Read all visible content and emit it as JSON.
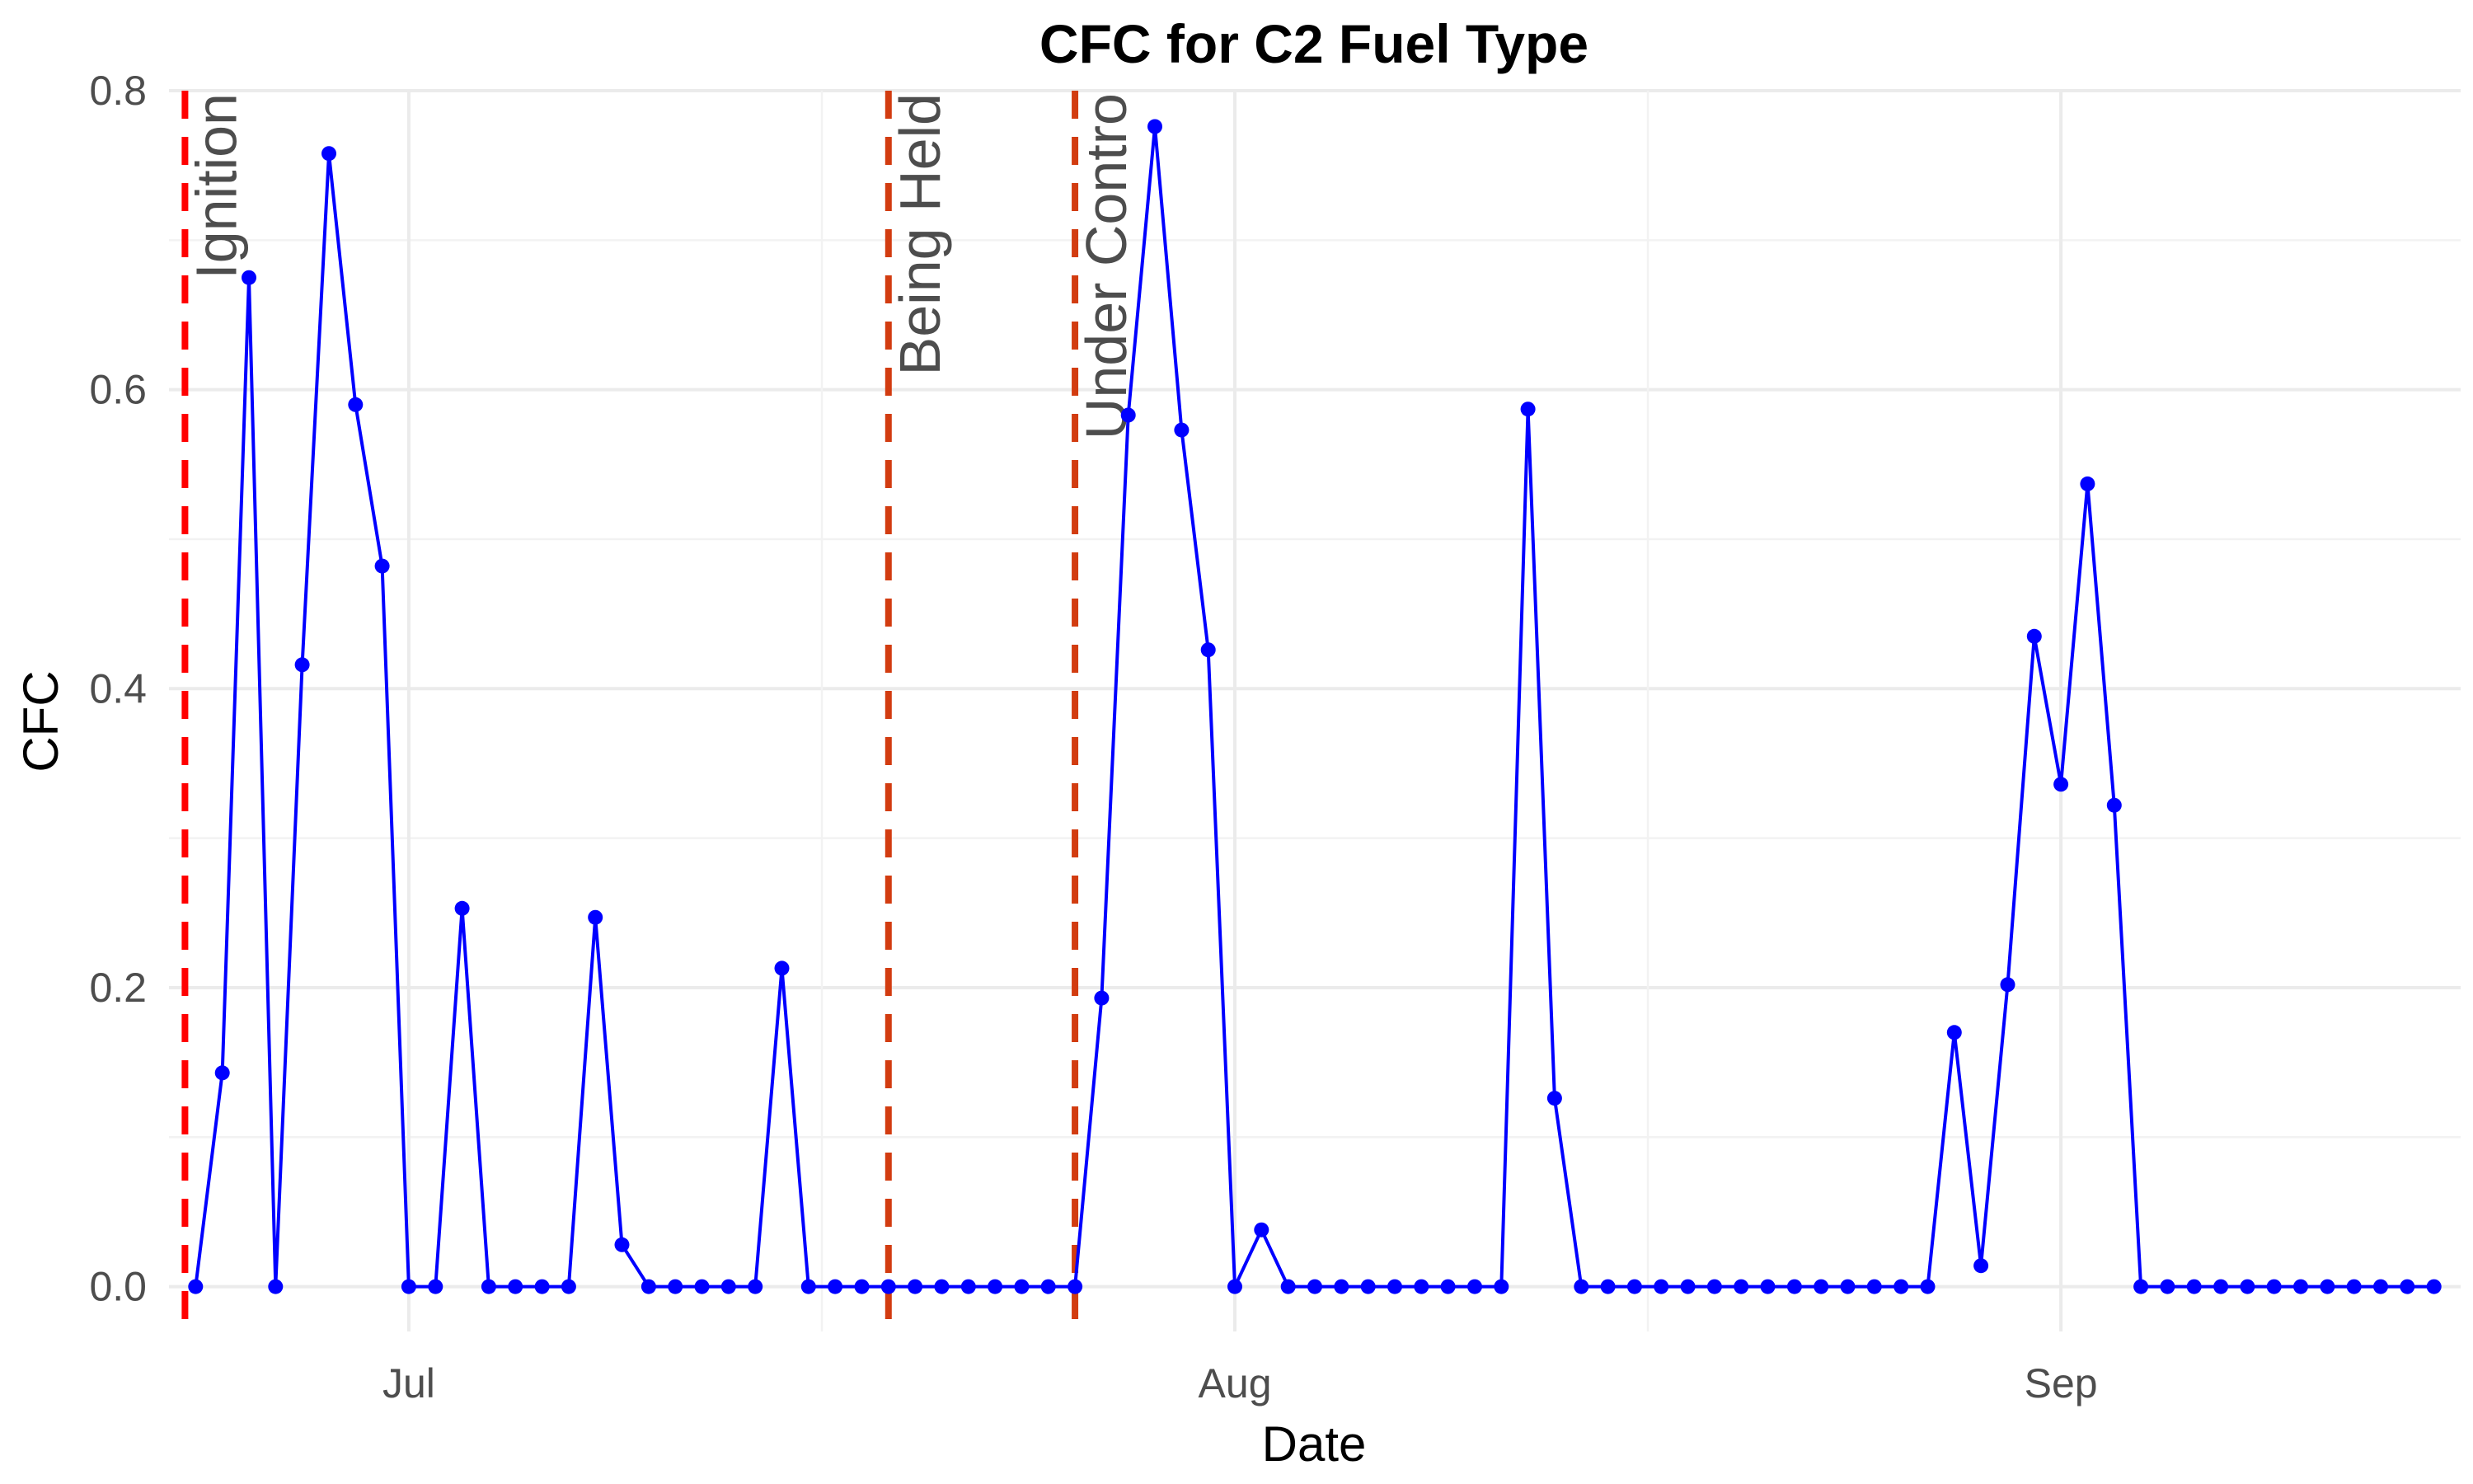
{
  "chart_data": {
    "type": "line",
    "title": "CFC for C2 Fuel Type",
    "xlabel": "Date",
    "ylabel": "CFC",
    "xlim": [
      "2023-06-22",
      "2023-09-16"
    ],
    "ylim": [
      -0.03,
      0.8
    ],
    "y_ticks": [
      0.0,
      0.2,
      0.4,
      0.6,
      0.8
    ],
    "y_tick_labels": [
      "0.0",
      "0.2",
      "0.4",
      "0.6",
      "0.8"
    ],
    "x_ticks": [
      "2023-07-01",
      "2023-08-01",
      "2023-09-01"
    ],
    "x_tick_labels": [
      "Jul",
      "Aug",
      "Sep"
    ],
    "grid": true,
    "legend": "none",
    "colors": {
      "series": "#0000ff",
      "ignition": "#ff0000",
      "status": "#d23c10"
    },
    "series": [
      {
        "x": [
          "2023-06-23",
          "2023-06-24",
          "2023-06-25",
          "2023-06-26",
          "2023-06-27",
          "2023-06-28",
          "2023-06-29",
          "2023-06-30",
          "2023-07-01",
          "2023-07-02",
          "2023-07-03",
          "2023-07-04",
          "2023-07-05",
          "2023-07-06",
          "2023-07-07",
          "2023-07-08",
          "2023-07-09",
          "2023-07-10",
          "2023-07-11",
          "2023-07-12",
          "2023-07-13",
          "2023-07-14",
          "2023-07-15",
          "2023-07-16",
          "2023-07-17",
          "2023-07-18",
          "2023-07-19",
          "2023-07-20",
          "2023-07-21",
          "2023-07-22",
          "2023-07-23",
          "2023-07-24",
          "2023-07-25",
          "2023-07-26",
          "2023-07-27",
          "2023-07-28",
          "2023-07-29",
          "2023-07-30",
          "2023-07-31",
          "2023-08-01",
          "2023-08-02",
          "2023-08-03",
          "2023-08-04",
          "2023-08-05",
          "2023-08-06",
          "2023-08-07",
          "2023-08-08",
          "2023-08-09",
          "2023-08-10",
          "2023-08-11",
          "2023-08-12",
          "2023-08-13",
          "2023-08-14",
          "2023-08-15",
          "2023-08-16",
          "2023-08-17",
          "2023-08-18",
          "2023-08-19",
          "2023-08-20",
          "2023-08-21",
          "2023-08-22",
          "2023-08-23",
          "2023-08-24",
          "2023-08-25",
          "2023-08-26",
          "2023-08-27",
          "2023-08-28",
          "2023-08-29",
          "2023-08-30",
          "2023-08-31",
          "2023-09-01",
          "2023-09-02",
          "2023-09-03",
          "2023-09-04",
          "2023-09-05",
          "2023-09-06",
          "2023-09-07",
          "2023-09-08",
          "2023-09-09",
          "2023-09-10",
          "2023-09-11",
          "2023-09-12",
          "2023-09-13",
          "2023-09-14",
          "2023-09-15"
        ],
        "values": [
          0.0,
          0.143,
          0.675,
          0.0,
          0.416,
          0.758,
          0.59,
          0.482,
          0.0,
          0.0,
          0.253,
          0.0,
          0.0,
          0.0,
          0.0,
          0.247,
          0.028,
          0.0,
          0.0,
          0.0,
          0.0,
          0.0,
          0.213,
          0.0,
          0.0,
          0.0,
          0.0,
          0.0,
          0.0,
          0.0,
          0.0,
          0.0,
          0.0,
          0.0,
          0.193,
          0.583,
          0.776,
          0.573,
          0.426,
          0.0,
          0.038,
          0.0,
          0.0,
          0.0,
          0.0,
          0.0,
          0.0,
          0.0,
          0.0,
          0.0,
          0.587,
          0.126,
          0.0,
          0.0,
          0.0,
          0.0,
          0.0,
          0.0,
          0.0,
          0.0,
          0.0,
          0.0,
          0.0,
          0.0,
          0.0,
          0.0,
          0.17,
          0.014,
          0.202,
          0.435,
          0.336,
          0.537,
          0.322,
          0.0,
          0.0,
          0.0,
          0.0,
          0.0,
          0.0,
          0.0,
          0.0,
          0.0,
          0.0,
          0.0,
          0.0
        ]
      }
    ],
    "events": [
      {
        "date": "2023-06-22.6",
        "label": "Ignition",
        "kind": "ignition"
      },
      {
        "date": "2023-07-19",
        "label": "Being Held",
        "kind": "status"
      },
      {
        "date": "2023-07-26",
        "label": "Under Contro",
        "kind": "status"
      }
    ]
  }
}
